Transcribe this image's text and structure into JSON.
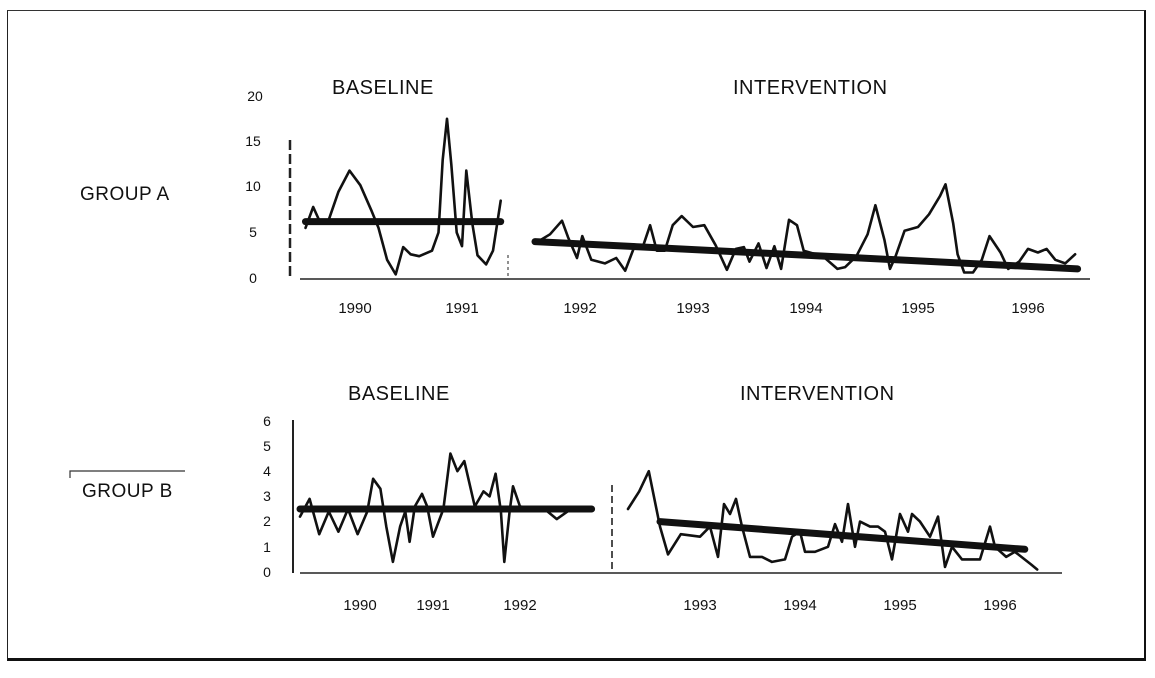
{
  "chart_data": [
    {
      "type": "line",
      "panel": "GROUP A",
      "group_label": "GROUP A",
      "phase_labels": [
        "BASELINE",
        "INTERVENTION"
      ],
      "ylim": [
        0,
        20
      ],
      "yticks": [
        "0",
        "5",
        "10",
        "15",
        "20"
      ],
      "xticks": [
        "1990",
        "1991",
        "1992",
        "1993",
        "1994",
        "1995",
        "1996"
      ],
      "xlabel": "",
      "ylabel": "",
      "phase_change_x": 1991.55,
      "series": [
        {
          "name": "Observed (baseline)",
          "style": "thin",
          "points": [
            [
              1989.55,
              5.5
            ],
            [
              1989.62,
              7.8
            ],
            [
              1989.68,
              6.2
            ],
            [
              1989.75,
              6.0
            ],
            [
              1989.85,
              9.5
            ],
            [
              1989.95,
              11.8
            ],
            [
              1990.05,
              10.2
            ],
            [
              1990.15,
              7.5
            ],
            [
              1990.22,
              5.5
            ],
            [
              1990.3,
              2.0
            ],
            [
              1990.38,
              0.4
            ],
            [
              1990.45,
              3.4
            ],
            [
              1990.52,
              2.6
            ],
            [
              1990.6,
              2.4
            ],
            [
              1990.72,
              3.0
            ],
            [
              1990.78,
              5.0
            ],
            [
              1990.82,
              13.0
            ],
            [
              1990.86,
              17.5
            ],
            [
              1990.9,
              12.5
            ],
            [
              1990.95,
              5.0
            ],
            [
              1991.0,
              3.5
            ],
            [
              1991.05,
              11.8
            ],
            [
              1991.12,
              6.0
            ],
            [
              1991.18,
              2.5
            ],
            [
              1991.28,
              1.5
            ],
            [
              1991.36,
              3.0
            ],
            [
              1991.45,
              8.5
            ]
          ]
        },
        {
          "name": "Baseline mean",
          "style": "thick",
          "points": [
            [
              1989.55,
              6.2
            ],
            [
              1991.45,
              6.2
            ]
          ]
        },
        {
          "name": "Observed (intervention)",
          "style": "thin",
          "points": [
            [
              1991.7,
              3.8
            ],
            [
              1991.8,
              4.8
            ],
            [
              1991.88,
              6.3
            ],
            [
              1991.92,
              4.5
            ],
            [
              1991.98,
              2.2
            ],
            [
              1992.02,
              4.6
            ],
            [
              1992.1,
              2.0
            ],
            [
              1992.22,
              1.6
            ],
            [
              1992.32,
              2.2
            ],
            [
              1992.4,
              0.8
            ],
            [
              1992.48,
              3.4
            ],
            [
              1992.55,
              3.2
            ],
            [
              1992.62,
              5.8
            ],
            [
              1992.68,
              3.0
            ],
            [
              1992.75,
              3.0
            ],
            [
              1992.82,
              5.8
            ],
            [
              1992.9,
              6.8
            ],
            [
              1993.0,
              5.6
            ],
            [
              1993.1,
              5.8
            ],
            [
              1993.2,
              3.6
            ],
            [
              1993.3,
              0.9
            ],
            [
              1993.38,
              3.2
            ],
            [
              1993.45,
              3.4
            ],
            [
              1993.5,
              1.8
            ],
            [
              1993.58,
              3.8
            ],
            [
              1993.65,
              1.1
            ],
            [
              1993.72,
              3.5
            ],
            [
              1993.78,
              1.0
            ],
            [
              1993.85,
              6.4
            ],
            [
              1993.92,
              5.8
            ],
            [
              1993.98,
              3.0
            ],
            [
              1994.15,
              2.4
            ],
            [
              1994.28,
              1.0
            ],
            [
              1994.35,
              1.2
            ],
            [
              1994.45,
              2.4
            ],
            [
              1994.55,
              4.8
            ],
            [
              1994.62,
              8.0
            ],
            [
              1994.7,
              4.2
            ],
            [
              1994.75,
              1.0
            ],
            [
              1994.8,
              2.4
            ],
            [
              1994.88,
              5.2
            ],
            [
              1995.0,
              5.6
            ],
            [
              1995.1,
              7.0
            ],
            [
              1995.2,
              9.0
            ],
            [
              1995.25,
              10.3
            ],
            [
              1995.32,
              6.0
            ],
            [
              1995.36,
              2.6
            ],
            [
              1995.42,
              0.6
            ],
            [
              1995.5,
              0.6
            ],
            [
              1995.58,
              2.0
            ],
            [
              1995.65,
              4.6
            ],
            [
              1995.75,
              2.8
            ],
            [
              1995.82,
              1.0
            ],
            [
              1995.92,
              1.8
            ],
            [
              1996.0,
              3.2
            ],
            [
              1996.08,
              2.8
            ],
            [
              1996.15,
              3.2
            ],
            [
              1996.22,
              2.0
            ],
            [
              1996.3,
              1.6
            ],
            [
              1996.38,
              2.6
            ]
          ]
        },
        {
          "name": "Intervention trend",
          "style": "thick",
          "points": [
            [
              1991.7,
              4.0
            ],
            [
              1996.4,
              1.0
            ]
          ]
        }
      ]
    },
    {
      "type": "line",
      "panel": "GROUP B",
      "group_label": "GROUP B",
      "phase_labels": [
        "BASELINE",
        "INTERVENTION"
      ],
      "ylim": [
        0,
        6
      ],
      "yticks": [
        "0",
        "1",
        "2",
        "3",
        "4",
        "5",
        "6"
      ],
      "xticks": [
        "1990",
        "1991",
        "1992",
        "1993",
        "1994",
        "1995",
        "1996"
      ],
      "xlabel": "",
      "ylabel": "",
      "phase_change_x": 1992.45,
      "series": [
        {
          "name": "Observed (baseline)",
          "style": "thin",
          "points": [
            [
              1989.5,
              2.2
            ],
            [
              1989.58,
              2.9
            ],
            [
              1989.66,
              1.5
            ],
            [
              1989.74,
              2.4
            ],
            [
              1989.82,
              1.6
            ],
            [
              1989.9,
              2.5
            ],
            [
              1989.98,
              1.5
            ],
            [
              1990.1,
              2.4
            ],
            [
              1990.18,
              3.7
            ],
            [
              1990.28,
              3.3
            ],
            [
              1990.36,
              1.8
            ],
            [
              1990.45,
              0.4
            ],
            [
              1990.55,
              1.8
            ],
            [
              1990.62,
              2.4
            ],
            [
              1990.68,
              1.2
            ],
            [
              1990.75,
              2.6
            ],
            [
              1990.85,
              3.1
            ],
            [
              1990.92,
              2.6
            ],
            [
              1991.0,
              1.4
            ],
            [
              1991.12,
              2.5
            ],
            [
              1991.2,
              4.7
            ],
            [
              1991.28,
              4.0
            ],
            [
              1991.36,
              4.4
            ],
            [
              1991.48,
              2.6
            ],
            [
              1991.58,
              3.2
            ],
            [
              1991.65,
              3.0
            ],
            [
              1991.72,
              3.9
            ],
            [
              1991.78,
              2.4
            ],
            [
              1991.82,
              0.4
            ],
            [
              1991.88,
              2.4
            ],
            [
              1991.92,
              3.4
            ],
            [
              1992.0,
              2.6
            ],
            [
              1992.12,
              2.5
            ],
            [
              1992.18,
              2.1
            ],
            [
              1992.25,
              2.5
            ]
          ]
        },
        {
          "name": "Baseline mean",
          "style": "thick",
          "points": [
            [
              1989.5,
              2.5
            ],
            [
              1992.35,
              2.5
            ]
          ]
        },
        {
          "name": "Observed (intervention)",
          "style": "thin",
          "points": [
            [
              1992.55,
              2.5
            ],
            [
              1992.62,
              3.2
            ],
            [
              1992.68,
              4.0
            ],
            [
              1992.75,
              1.8
            ],
            [
              1992.8,
              0.7
            ],
            [
              1992.88,
              1.5
            ],
            [
              1993.0,
              1.4
            ],
            [
              1993.1,
              1.8
            ],
            [
              1993.18,
              0.6
            ],
            [
              1993.24,
              2.7
            ],
            [
              1993.3,
              2.3
            ],
            [
              1993.36,
              2.9
            ],
            [
              1993.42,
              1.8
            ],
            [
              1993.5,
              0.6
            ],
            [
              1993.62,
              0.6
            ],
            [
              1993.72,
              0.4
            ],
            [
              1993.85,
              0.5
            ],
            [
              1993.92,
              1.4
            ],
            [
              1994.0,
              1.6
            ],
            [
              1994.05,
              0.8
            ],
            [
              1994.15,
              0.8
            ],
            [
              1994.28,
              1.0
            ],
            [
              1994.35,
              1.9
            ],
            [
              1994.42,
              1.2
            ],
            [
              1994.48,
              2.7
            ],
            [
              1994.55,
              1.0
            ],
            [
              1994.6,
              2.0
            ],
            [
              1994.7,
              1.8
            ],
            [
              1994.78,
              1.8
            ],
            [
              1994.85,
              1.6
            ],
            [
              1994.92,
              0.5
            ],
            [
              1995.0,
              2.3
            ],
            [
              1995.08,
              1.6
            ],
            [
              1995.12,
              2.3
            ],
            [
              1995.2,
              2.0
            ],
            [
              1995.3,
              1.4
            ],
            [
              1995.38,
              2.2
            ],
            [
              1995.45,
              0.2
            ],
            [
              1995.52,
              1.0
            ],
            [
              1995.62,
              0.5
            ],
            [
              1995.8,
              0.5
            ],
            [
              1995.9,
              1.8
            ],
            [
              1995.95,
              1.0
            ],
            [
              1996.05,
              0.6
            ],
            [
              1996.12,
              0.8
            ],
            [
              1996.25,
              0.3
            ],
            [
              1996.3,
              0.1
            ]
          ]
        },
        {
          "name": "Intervention trend",
          "style": "thick",
          "points": [
            [
              1992.75,
              2.0
            ],
            [
              1996.2,
              0.9
            ]
          ]
        }
      ]
    }
  ],
  "panels": {
    "a": {
      "group_label": "GROUP A",
      "baseline_label": "BASELINE",
      "intervention_label": "INTERVENTION",
      "yticks": [
        "0",
        "5",
        "10",
        "15",
        "20"
      ],
      "xticks": [
        "1990",
        "1991",
        "1992",
        "1993",
        "1994",
        "1995",
        "1996"
      ]
    },
    "b": {
      "group_label": "GROUP B",
      "baseline_label": "BASELINE",
      "intervention_label": "INTERVENTION",
      "yticks": [
        "0",
        "1",
        "2",
        "3",
        "4",
        "5",
        "6"
      ],
      "xticks": [
        "1990",
        "1991",
        "1992",
        "1993",
        "1994",
        "1995",
        "1996"
      ]
    }
  }
}
